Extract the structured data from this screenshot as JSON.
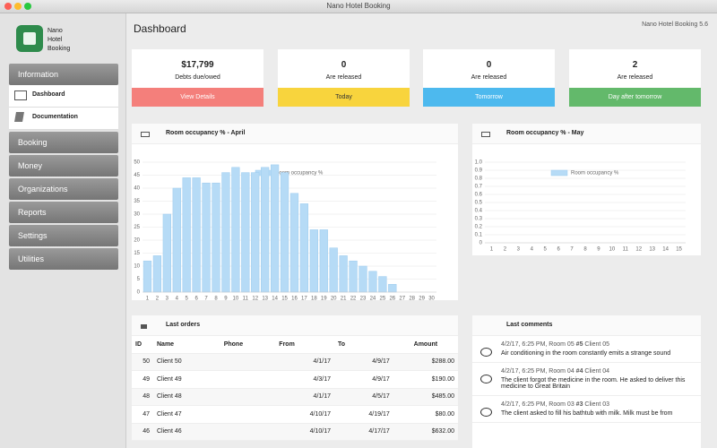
{
  "window_title": "Nano Hotel Booking",
  "sidebar": {
    "app_name": [
      "Nano",
      "Hotel",
      "Booking"
    ],
    "menu": [
      {
        "label": "Information",
        "items": [
          "Dashboard",
          "Documentation"
        ]
      },
      {
        "label": "Booking"
      },
      {
        "label": "Money"
      },
      {
        "label": "Organizations"
      },
      {
        "label": "Reports"
      },
      {
        "label": "Settings"
      },
      {
        "label": "Utilities"
      }
    ]
  },
  "header": {
    "title": "Dashboard",
    "version": "Nano Hotel Booking 5.6"
  },
  "cards": [
    {
      "value": "$17,799",
      "label": "Debts due/owed",
      "button": "View Details",
      "color": "#f47f7b"
    },
    {
      "value": "0",
      "label": "Are released",
      "button": "Today",
      "color": "#f8d43d"
    },
    {
      "value": "0",
      "label": "Are released",
      "button": "Tomorrow",
      "color": "#4db9ee"
    },
    {
      "value": "2",
      "label": "Are released",
      "button": "Day after tomorrow",
      "color": "#63b96b"
    }
  ],
  "chart_data": [
    {
      "type": "bar",
      "title": "Room occupancy % - April",
      "categories": [
        "1",
        "2",
        "3",
        "4",
        "5",
        "6",
        "7",
        "8",
        "9",
        "10",
        "11",
        "12",
        "13",
        "14",
        "15",
        "16",
        "17",
        "18",
        "19",
        "20",
        "21",
        "22",
        "23",
        "24",
        "25",
        "26",
        "27",
        "28",
        "29",
        "30"
      ],
      "series": [
        {
          "name": "Room occupancy %",
          "color": "#b6dbf6",
          "values": [
            12,
            14,
            30,
            40,
            44,
            44,
            42,
            42,
            46,
            48,
            46,
            46,
            48,
            49,
            46,
            38,
            34,
            24,
            24,
            17,
            14,
            12,
            10,
            8,
            6,
            3,
            0,
            0,
            0,
            0
          ]
        }
      ],
      "ylim": [
        0,
        50
      ],
      "yticks": [
        0,
        5,
        10,
        15,
        20,
        25,
        30,
        35,
        40,
        45,
        50
      ],
      "grid": true
    },
    {
      "type": "bar",
      "title": "Room occupancy % - May",
      "categories": [
        "1",
        "2",
        "3",
        "4",
        "5",
        "6",
        "7",
        "8",
        "9",
        "10",
        "11",
        "12",
        "13",
        "14",
        "15"
      ],
      "series": [
        {
          "name": "Room occupancy %",
          "color": "#b6dbf6",
          "values": [
            0,
            0,
            0,
            0,
            0,
            0,
            0,
            0,
            0,
            0,
            0,
            0,
            0,
            0,
            0
          ]
        }
      ],
      "ylim": [
        0,
        1
      ],
      "yticks": [
        0,
        0.1,
        0.2,
        0.3,
        0.4,
        0.5,
        0.6,
        0.7,
        0.8,
        0.9,
        {
          "value": 1,
          "label": "1.0"
        }
      ],
      "grid": true
    }
  ],
  "orders": {
    "title": "Last orders",
    "columns": [
      "ID",
      "Name",
      "Phone",
      "From",
      "To",
      "Amount"
    ],
    "rows": [
      {
        "id": "50",
        "name": "Client 50",
        "from": "4/1/17",
        "to": "4/9/17",
        "amount": "$288.00"
      },
      {
        "id": "49",
        "name": "Client 49",
        "from": "4/3/17",
        "to": "4/9/17",
        "amount": "$190.00"
      },
      {
        "id": "48",
        "name": "Client 48",
        "from": "4/1/17",
        "to": "4/5/17",
        "amount": "$485.00"
      },
      {
        "id": "47",
        "name": "Client 47",
        "from": "4/10/17",
        "to": "4/19/17",
        "amount": "$80.00"
      },
      {
        "id": "46",
        "name": "Client 46",
        "from": "4/10/17",
        "to": "4/17/17",
        "amount": "$632.00"
      }
    ]
  },
  "comments": {
    "title": "Last comments",
    "items": [
      {
        "meta": "4/2/17, 6:25 PM, Room 05",
        "number": "#5",
        "client": "Client 05",
        "text": "Air conditioning in the room constantly emits a strange sound"
      },
      {
        "meta": "4/2/17, 6:25 PM, Room 04",
        "number": "#4",
        "client": "Client 04",
        "text": "The client forgot the medicine in the room. He asked to deliver this medicine to Great Britain"
      },
      {
        "meta": "4/2/17, 6:25 PM, Room 03",
        "number": "#3",
        "client": "Client 03",
        "text": "The client asked to fill his bathtub with milk. Milk must be from"
      }
    ]
  }
}
